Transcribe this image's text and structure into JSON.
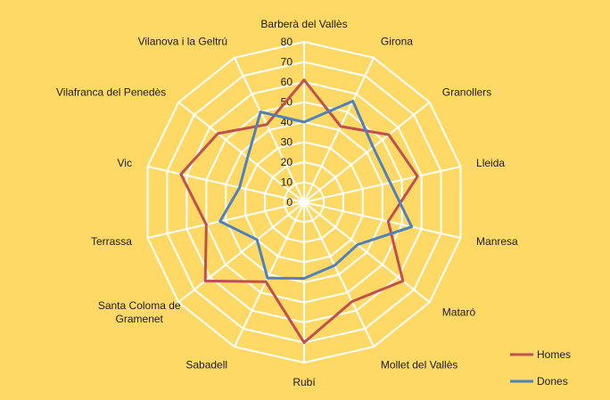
{
  "chart_data": {
    "type": "radar",
    "categories": [
      "Barberà del Vallès",
      "Girona",
      "Granollers",
      "Lleida",
      "Manresa",
      "Mataró",
      "Mollet del Vallès",
      "Rubí",
      "Sabadell",
      "Santa Coloma de\nGramenet",
      "Terrassa",
      "Vic",
      "Vilafranca  del Penedès",
      "Vilanova i la Geltrú"
    ],
    "series": [
      {
        "name": "Homes",
        "color": "#C0504D",
        "values": [
          61,
          42,
          54,
          58,
          43,
          63,
          55,
          70,
          44,
          63,
          50,
          63,
          55,
          43
        ]
      },
      {
        "name": "Dones",
        "color": "#4F81BD",
        "values": [
          40,
          56,
          44,
          44,
          55,
          34,
          35,
          38,
          42,
          30,
          43,
          33,
          36,
          50
        ]
      }
    ],
    "rlim": [
      0,
      80
    ],
    "ticks": [
      "0",
      "10",
      "20",
      "30",
      "40",
      "50",
      "60",
      "70",
      "80"
    ],
    "grid": true,
    "legend": "bottom-right",
    "background": "#FFD966",
    "grid_color": "#FFFFFF"
  }
}
